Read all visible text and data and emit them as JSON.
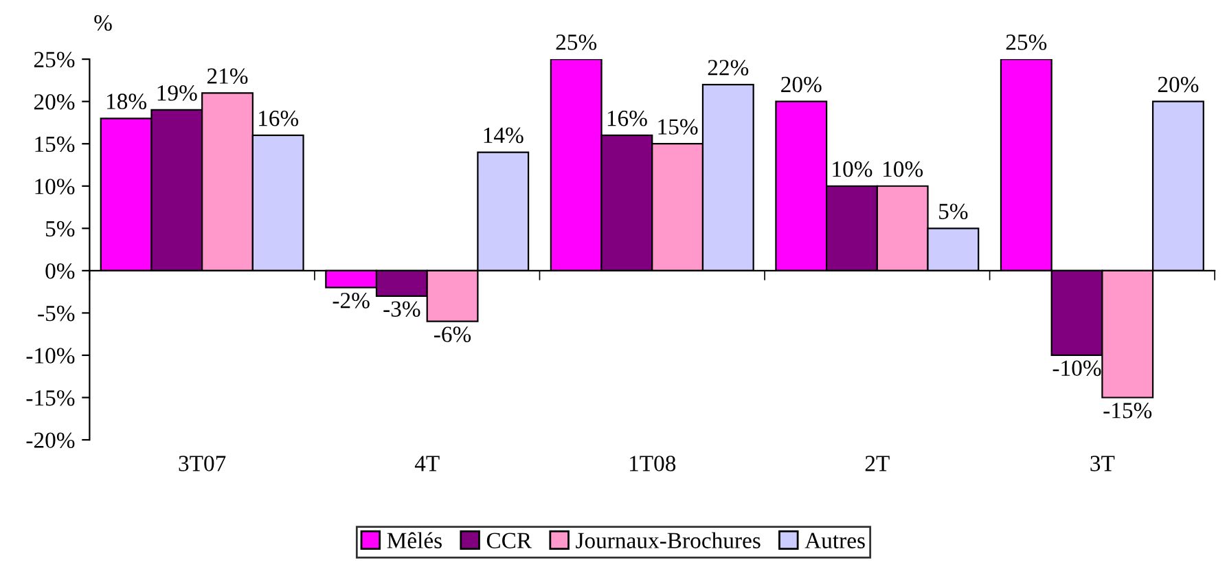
{
  "chart_data": {
    "type": "bar",
    "ylabel": "%",
    "categories": [
      "3T07",
      "4T",
      "1T08",
      "2T",
      "3T"
    ],
    "series": [
      {
        "name": "Mêlés",
        "color": "#ff00ff",
        "values": [
          18,
          -2,
          25,
          20,
          25
        ],
        "value_labels": [
          "18%",
          "-2%",
          "25%",
          "20%",
          "25%"
        ]
      },
      {
        "name": "CCR",
        "color": "#800080",
        "values": [
          19,
          -3,
          16,
          10,
          -10
        ],
        "value_labels": [
          "19%",
          "-3%",
          "16%",
          "10%",
          "-10%"
        ]
      },
      {
        "name": "Journaux-Brochures",
        "color": "#ff99cc",
        "values": [
          21,
          -6,
          15,
          10,
          -15
        ],
        "value_labels": [
          "21%",
          "-6%",
          "15%",
          "10%",
          "-15%"
        ]
      },
      {
        "name": "Autres",
        "color": "#ccccff",
        "values": [
          16,
          14,
          22,
          5,
          20
        ],
        "value_labels": [
          "16%",
          "14%",
          "22%",
          "5%",
          "20%"
        ]
      }
    ],
    "ylim": [
      -20,
      25
    ],
    "yticks": [
      {
        "value": -20,
        "label": "-20%"
      },
      {
        "value": -15,
        "label": "-15%"
      },
      {
        "value": -10,
        "label": "-10%"
      },
      {
        "value": -5,
        "label": "-5%"
      },
      {
        "value": 0,
        "label": "0%"
      },
      {
        "value": 5,
        "label": "5%"
      },
      {
        "value": 10,
        "label": "10%"
      },
      {
        "value": 15,
        "label": "15%"
      },
      {
        "value": 20,
        "label": "20%"
      },
      {
        "value": 25,
        "label": "25%"
      }
    ],
    "legend": "bottom"
  }
}
